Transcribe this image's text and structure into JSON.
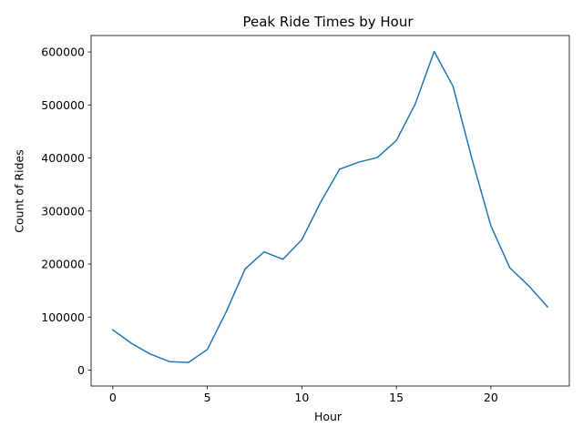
{
  "chart_data": {
    "type": "line",
    "title": "Peak Ride Times by Hour",
    "xlabel": "Hour",
    "ylabel": "Count of Rides",
    "x": [
      0,
      1,
      2,
      3,
      4,
      5,
      6,
      7,
      8,
      9,
      10,
      11,
      12,
      13,
      14,
      15,
      16,
      17,
      18,
      19,
      20,
      21,
      22,
      23
    ],
    "series": [
      {
        "values": [
          76000,
          50000,
          30000,
          16000,
          14500,
          39000,
          110000,
          191000,
          223000,
          209000,
          246000,
          317000,
          379000,
          392000,
          401000,
          433000,
          502000,
          601000,
          535000,
          398000,
          272000,
          193000,
          159000,
          119000
        ],
        "color": "#1f77b4"
      }
    ],
    "xlim": [
      -1.15,
      24.15
    ],
    "ylim": [
      -30000,
      631000
    ],
    "xticks": [
      0,
      5,
      10,
      15,
      20
    ],
    "yticks": [
      0,
      100000,
      200000,
      300000,
      400000,
      500000,
      600000
    ],
    "grid": false,
    "legend": "none"
  }
}
